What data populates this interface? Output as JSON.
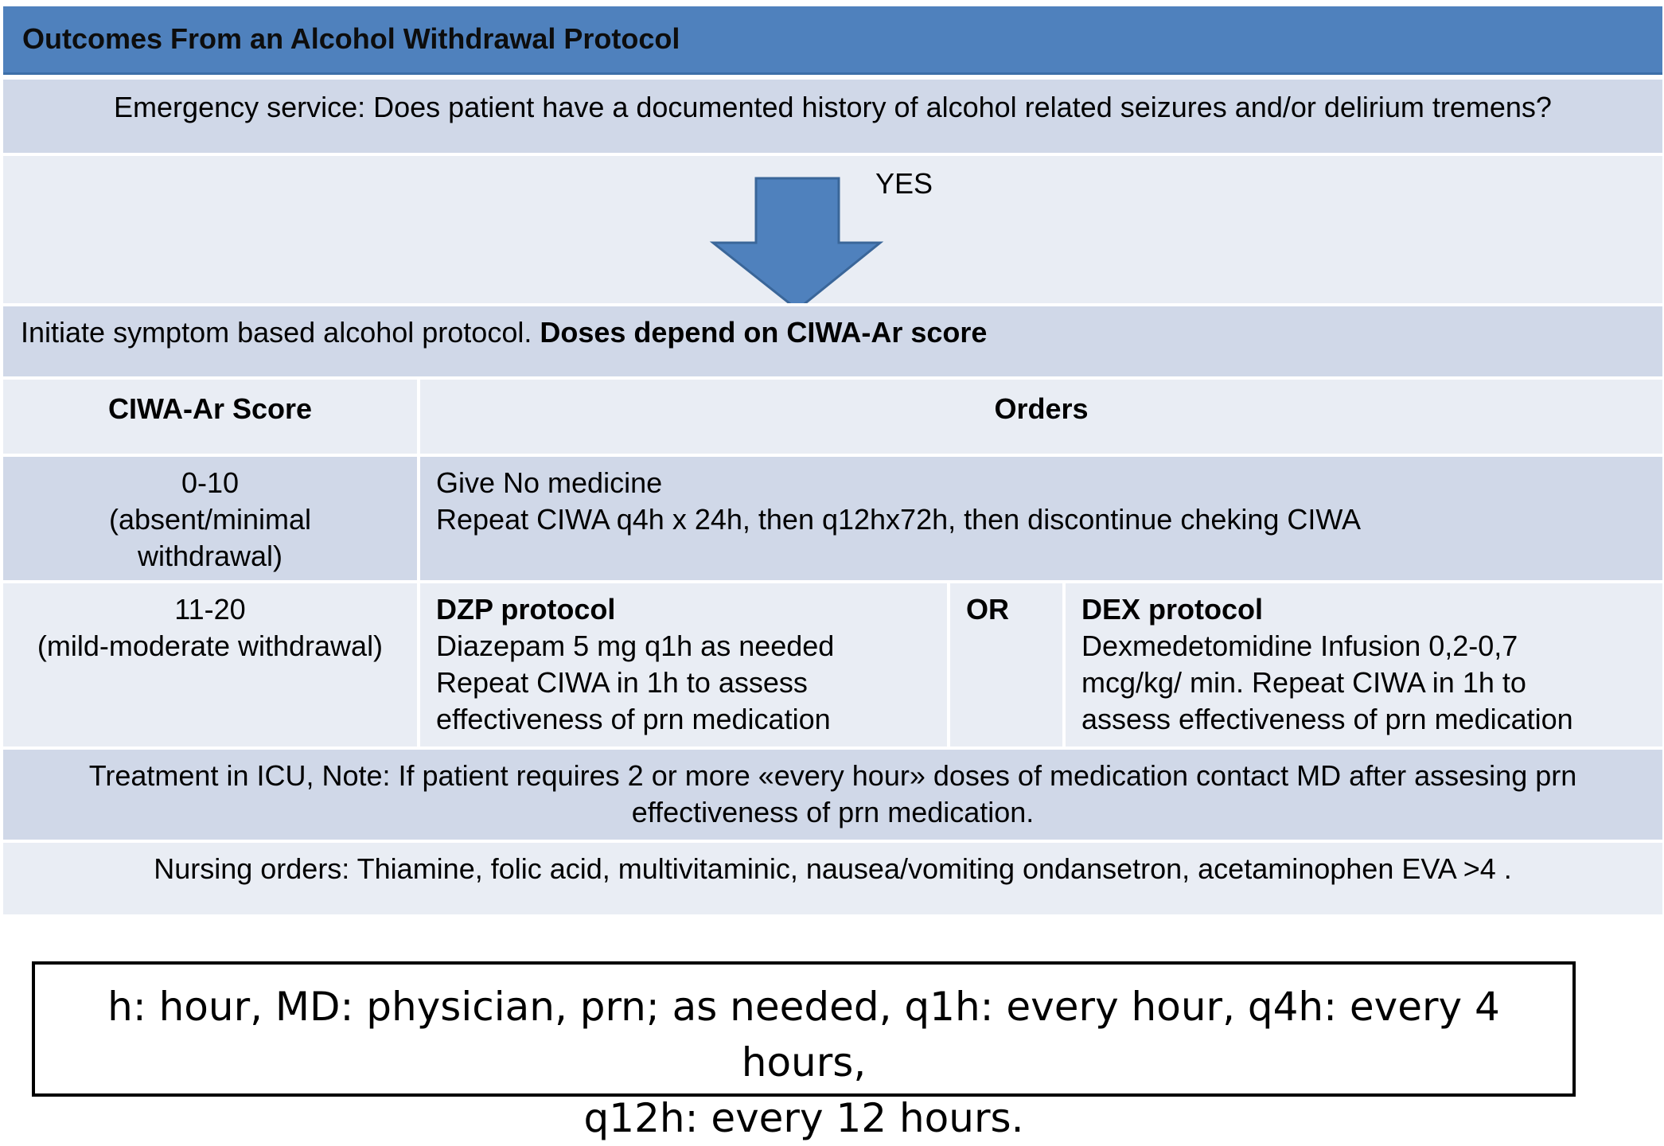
{
  "title": "Outcomes From an Alcohol Withdrawal Protocol",
  "question": "Emergency service: Does patient have a documented history of alcohol related seizures and/or delirium tremens?",
  "arrow_label": "YES",
  "initiate": {
    "text": "Initiate symptom based alcohol protocol. ",
    "bold": "Doses depend on CIWA-Ar score"
  },
  "table": {
    "headers": [
      "CIWA-Ar Score",
      "Orders"
    ],
    "row1": {
      "score_lines": [
        "0-10",
        "(absent/minimal",
        "withdrawal)"
      ],
      "order_lines": [
        "Give No medicine",
        "Repeat CIWA  q4h x 24h, then q12hx72h, then discontinue cheking CIWA"
      ]
    },
    "row2": {
      "score_lines": [
        "11-20",
        "(mild-moderate withdrawal)"
      ],
      "dzp_title": "DZP protocol",
      "dzp_lines": [
        "Diazepam 5 mg q1h as needed",
        "Repeat CIWA in 1h to assess",
        "effectiveness of prn medication"
      ],
      "or_label": "OR",
      "dex_title": "DEX protocol",
      "dex_lines": [
        "Dexmedetomidine Infusion 0,2-0,7",
        "mcg/kg/ min. Repeat CIWA in 1h to",
        "assess effectiveness of prn medication"
      ]
    }
  },
  "icu_note": "Treatment in ICU, Note: If patient requires 2 or more «every hour» doses of medication contact MD after assesing prn effectiveness of prn medication.",
  "nursing_orders": "Nursing orders: Thiamine, folic acid, multivitaminic, nausea/vomiting ondansetron, acetaminophen EVA >4 .",
  "legend": {
    "line1": "h: hour, MD: physician, prn; as needed, q1h: every hour, q4h: every 4 hours,",
    "line2": "q12h: every 12 hours."
  },
  "colors": {
    "title_bar": "#4f81bd",
    "band_dark": "#d0d8e8",
    "band_light": "#e9edf4",
    "arrow": "#4f81bd"
  }
}
